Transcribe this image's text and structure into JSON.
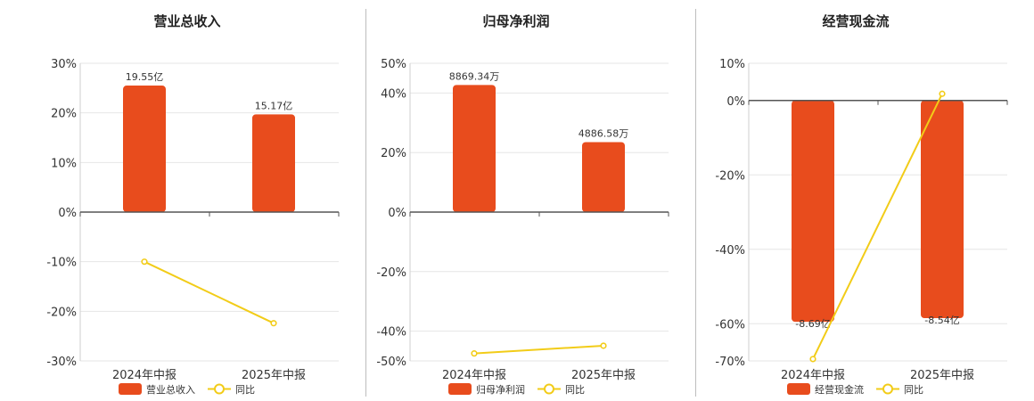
{
  "colors": {
    "bar": "#E84C1D",
    "line": "#F2CC18",
    "grid": "#E6E6E6",
    "axis": "#555555",
    "divider": "#BDBDBD"
  },
  "legend": {
    "line_label": "同比"
  },
  "chart_data": [
    {
      "type": "bar",
      "title": "营业总收入",
      "categories": [
        "2024年中报",
        "2025年中报"
      ],
      "ylim": [
        -30,
        30
      ],
      "yticks": [
        -30,
        -20,
        -10,
        0,
        10,
        20,
        30
      ],
      "series": [
        {
          "name": "营业总收入",
          "kind": "bar",
          "values": [
            25.5,
            19.7
          ],
          "labels": [
            "19.55亿",
            "15.17亿"
          ]
        },
        {
          "name": "同比",
          "kind": "line",
          "values": [
            -10,
            -22.4
          ]
        }
      ]
    },
    {
      "type": "bar",
      "title": "归母净利润",
      "categories": [
        "2024年中报",
        "2025年中报"
      ],
      "ylim": [
        -50,
        50
      ],
      "yticks": [
        -50,
        -40,
        -20,
        0,
        20,
        40,
        50
      ],
      "series": [
        {
          "name": "归母净利润",
          "kind": "bar",
          "values": [
            42.7,
            23.5
          ],
          "labels": [
            "8869.34万",
            "4886.58万"
          ]
        },
        {
          "name": "同比",
          "kind": "line",
          "values": [
            -47.5,
            -44.9
          ]
        }
      ]
    },
    {
      "type": "bar",
      "title": "经营现金流",
      "categories": [
        "2024年中报",
        "2025年中报"
      ],
      "ylim": [
        -70,
        10
      ],
      "yticks": [
        -70,
        -60,
        -40,
        -20,
        0,
        10
      ],
      "series": [
        {
          "name": "经营现金流",
          "kind": "bar",
          "values": [
            -59.5,
            -58.5
          ],
          "labels": [
            "-8.69亿",
            "-8.54亿"
          ]
        },
        {
          "name": "同比",
          "kind": "line",
          "values": [
            -69.5,
            1.8
          ]
        }
      ]
    }
  ]
}
